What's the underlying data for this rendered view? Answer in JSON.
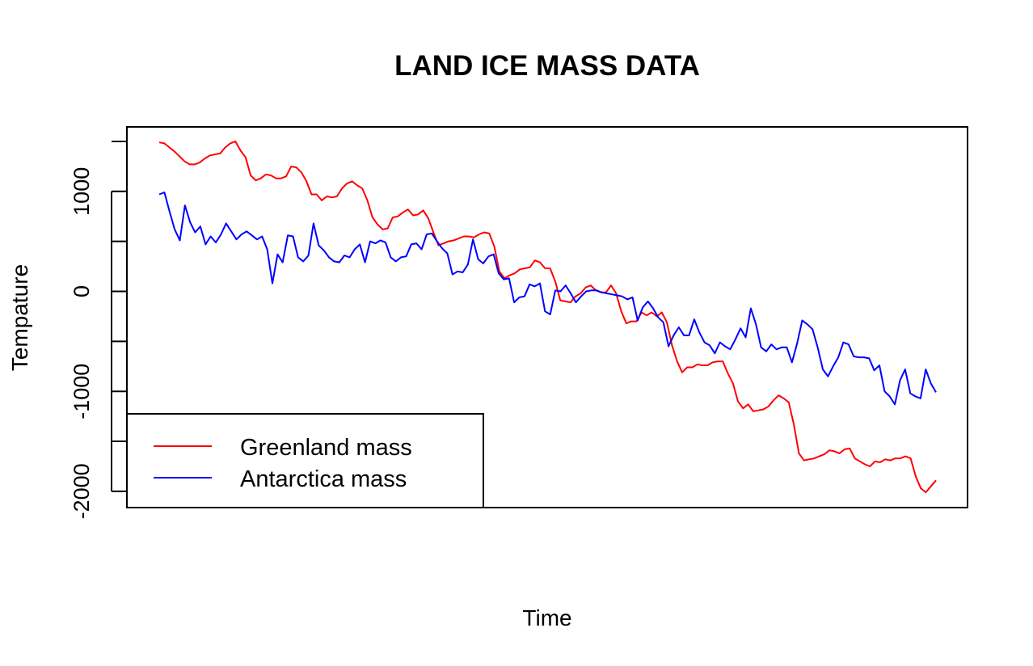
{
  "chart_data": {
    "type": "line",
    "title": "LAND ICE MASS DATA",
    "xlabel": "Time",
    "ylabel": "Tempature",
    "ylim": [
      -2200,
      1550
    ],
    "y_ticks": [
      -2000,
      -1000,
      0,
      1000
    ],
    "y_tick_labels": [
      "-2000",
      "-1000",
      "0",
      "1000"
    ],
    "x_ticks_shown": false,
    "grid": false,
    "legend": {
      "placement": "bottom-left",
      "entries": [
        {
          "label": "Greenland mass",
          "color": "#ff0000"
        },
        {
          "label": "Antarctica mass",
          "color": "#0000ff"
        }
      ]
    },
    "series": [
      {
        "name": "Greenland mass",
        "color": "#ff0000",
        "values": [
          1490,
          1480,
          1440,
          1400,
          1350,
          1300,
          1270,
          1270,
          1290,
          1330,
          1360,
          1370,
          1380,
          1440,
          1480,
          1500,
          1410,
          1340,
          1160,
          1110,
          1130,
          1170,
          1160,
          1130,
          1130,
          1150,
          1250,
          1240,
          1190,
          1100,
          970,
          970,
          910,
          950,
          940,
          950,
          1030,
          1080,
          1100,
          1060,
          1030,
          910,
          740,
          670,
          620,
          630,
          740,
          750,
          790,
          820,
          760,
          770,
          810,
          730,
          590,
          460,
          480,
          500,
          510,
          530,
          550,
          550,
          540,
          570,
          590,
          580,
          450,
          200,
          130,
          160,
          180,
          220,
          230,
          240,
          310,
          290,
          230,
          230,
          100,
          -90,
          -100,
          -110,
          -50,
          -20,
          40,
          60,
          10,
          -10,
          -10,
          60,
          -20,
          -200,
          -320,
          -300,
          -300,
          -210,
          -240,
          -210,
          -250,
          -210,
          -310,
          -540,
          -700,
          -810,
          -760,
          -760,
          -730,
          -740,
          -740,
          -710,
          -700,
          -700,
          -820,
          -920,
          -1100,
          -1170,
          -1130,
          -1200,
          -1190,
          -1180,
          -1150,
          -1090,
          -1040,
          -1070,
          -1110,
          -1330,
          -1620,
          -1690,
          -1680,
          -1670,
          -1650,
          -1630,
          -1590,
          -1600,
          -1620,
          -1580,
          -1570,
          -1670,
          -1700,
          -1730,
          -1750,
          -1700,
          -1710,
          -1680,
          -1690,
          -1670,
          -1670,
          -1650,
          -1670,
          -1850,
          -1970,
          -2010,
          -1950,
          -1890
        ]
      },
      {
        "name": "Antarctica mass",
        "color": "#0000ff",
        "values": [
          970,
          990,
          800,
          620,
          510,
          860,
          690,
          590,
          650,
          470,
          550,
          490,
          570,
          680,
          600,
          520,
          570,
          600,
          560,
          520,
          550,
          420,
          80,
          370,
          290,
          560,
          550,
          340,
          300,
          360,
          680,
          460,
          410,
          340,
          300,
          290,
          360,
          340,
          420,
          470,
          290,
          500,
          480,
          510,
          490,
          340,
          300,
          340,
          350,
          470,
          480,
          420,
          570,
          580,
          500,
          430,
          380,
          170,
          200,
          190,
          270,
          520,
          320,
          280,
          350,
          370,
          180,
          120,
          130,
          -110,
          -60,
          -50,
          70,
          50,
          80,
          -200,
          -230,
          10,
          0,
          60,
          -20,
          -110,
          -50,
          0,
          10,
          10,
          -10,
          -20,
          -30,
          -40,
          -50,
          -80,
          -60,
          -290,
          -160,
          -100,
          -170,
          -260,
          -310,
          -550,
          -440,
          -360,
          -440,
          -440,
          -280,
          -410,
          -510,
          -540,
          -620,
          -510,
          -550,
          -580,
          -480,
          -370,
          -460,
          -170,
          -330,
          -560,
          -600,
          -530,
          -580,
          -560,
          -560,
          -710,
          -520,
          -290,
          -330,
          -380,
          -560,
          -780,
          -850,
          -750,
          -660,
          -510,
          -530,
          -650,
          -660,
          -660,
          -670,
          -790,
          -740,
          -1000,
          -1050,
          -1130,
          -890,
          -780,
          -1020,
          -1050,
          -1070,
          -780,
          -920,
          -1010
        ]
      }
    ]
  }
}
